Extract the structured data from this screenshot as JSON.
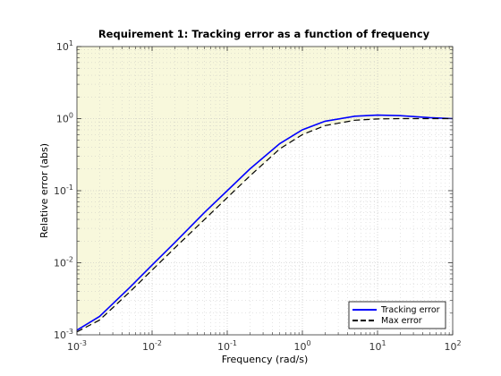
{
  "chart_data": {
    "type": "line",
    "title": "Requirement 1: Tracking error as a function of frequency",
    "xlabel": "Frequency (rad/s)",
    "ylabel": "Relative error (abs)",
    "xscale": "log",
    "yscale": "log",
    "xlim": [
      0.001,
      100
    ],
    "ylim": [
      0.001,
      10
    ],
    "x_ticks": [
      {
        "value": 0.001,
        "base": "10",
        "exp": "-3"
      },
      {
        "value": 0.01,
        "base": "10",
        "exp": "-2"
      },
      {
        "value": 0.1,
        "base": "10",
        "exp": "-1"
      },
      {
        "value": 1,
        "base": "10",
        "exp": "0"
      },
      {
        "value": 10,
        "base": "10",
        "exp": "1"
      },
      {
        "value": 100,
        "base": "10",
        "exp": "2"
      }
    ],
    "y_ticks": [
      {
        "value": 0.001,
        "base": "10",
        "exp": "-3"
      },
      {
        "value": 0.01,
        "base": "10",
        "exp": "-2"
      },
      {
        "value": 0.1,
        "base": "10",
        "exp": "-1"
      },
      {
        "value": 1,
        "base": "10",
        "exp": "0"
      },
      {
        "value": 10,
        "base": "10",
        "exp": "1"
      }
    ],
    "grid": true,
    "minor_grid": true,
    "legend_position": "bottom-right",
    "shaded_region": "above Max error (violated requirement region)",
    "series": [
      {
        "name": "Tracking error",
        "color": "#0000ff",
        "style": "solid",
        "x": [
          0.001,
          0.002,
          0.005,
          0.01,
          0.02,
          0.05,
          0.1,
          0.2,
          0.5,
          1,
          2,
          5,
          10,
          20,
          50,
          100
        ],
        "y": [
          0.00116,
          0.0018,
          0.0045,
          0.0093,
          0.019,
          0.05,
          0.1,
          0.2,
          0.45,
          0.7,
          0.92,
          1.08,
          1.12,
          1.1,
          1.03,
          1.0
        ]
      },
      {
        "name": "Max error",
        "color": "#000000",
        "style": "dashed",
        "x": [
          0.001,
          0.002,
          0.005,
          0.01,
          0.02,
          0.05,
          0.1,
          0.2,
          0.5,
          1,
          2,
          5,
          10,
          20,
          50,
          100
        ],
        "y": [
          0.0011,
          0.0016,
          0.0039,
          0.0079,
          0.016,
          0.04,
          0.08,
          0.16,
          0.38,
          0.6,
          0.8,
          0.95,
          0.99,
          1.0,
          1.0,
          1.0
        ]
      }
    ],
    "colors": {
      "shade": "#f8f8dc",
      "grid": "#bbbbbb",
      "axis": "#333333"
    }
  }
}
